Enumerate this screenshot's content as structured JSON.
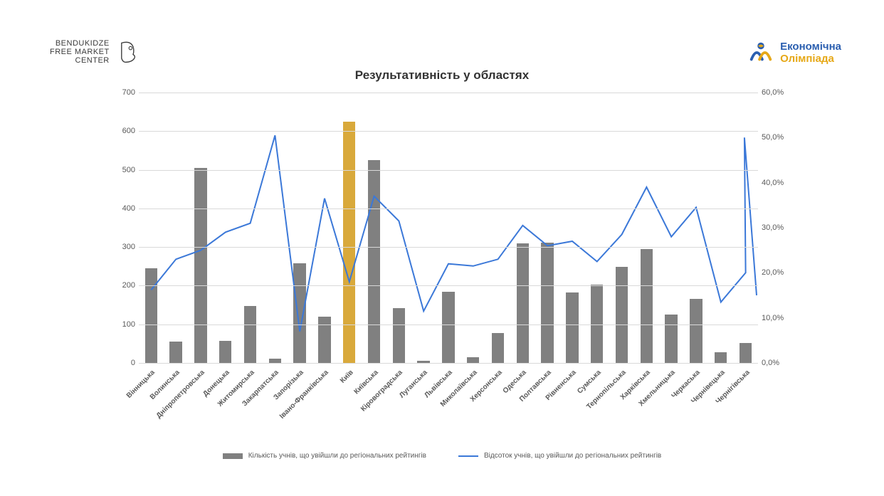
{
  "title": "Результативність у областях",
  "logos": {
    "left": {
      "line1": "BENDUKIDZE",
      "line2": "FREE MARKET",
      "line3": "CENTER"
    },
    "right": {
      "line1": "Економічна",
      "line2": "Олімпіада",
      "line1_color": "#2b5fb0",
      "line2_color": "#e6a817"
    }
  },
  "chart": {
    "type": "bar+line",
    "background_color": "#ffffff",
    "grid_color": "#d9d9d9",
    "bar_color": "#808080",
    "bar_highlight_color": "#d9a93b",
    "line_color": "#3b78d8",
    "line_width": 2,
    "y_left": {
      "min": 0,
      "max": 700,
      "step": 100
    },
    "y_right": {
      "min": 0,
      "max": 60,
      "step": 10,
      "suffix": ",0%"
    },
    "categories": [
      "Вінницька",
      "Волинська",
      "Дніпропетровська",
      "Донецька",
      "Житомирська",
      "Закарпатська",
      "Запорізька",
      "Івано-Франківська",
      "Київ",
      "Київська",
      "Кіровоградська",
      "Луганська",
      "Львівська",
      "Миколаївська",
      "Херсонська",
      "Одеська",
      "Полтавська",
      "Рівненська",
      "Сумська",
      "Тернопільська",
      "Харківська",
      "Хмельницька",
      "Черкаська",
      "Чернівецька",
      "Чернігівська"
    ],
    "bar_values": [
      245,
      55,
      505,
      58,
      148,
      12,
      258,
      120,
      625,
      525,
      142,
      5,
      185,
      14,
      78,
      310,
      312,
      182,
      202,
      248,
      295,
      125,
      165,
      28,
      52
    ],
    "highlight_index": 8,
    "line_values_pct": [
      16.2,
      23.0,
      25.0,
      29.0,
      31.0,
      50.5,
      7.0,
      36.5,
      18.0,
      37.0,
      31.5,
      11.5,
      22.0,
      21.5,
      23.0,
      30.5,
      26.0,
      27.0,
      22.5,
      28.5,
      39.0,
      28.0,
      34.5,
      13.5,
      20.0,
      50.0,
      15.0
    ],
    "line_values_used": [
      16.2,
      23.0,
      25.0,
      29.0,
      31.0,
      50.5,
      7.0,
      36.5,
      18.0,
      37.0,
      31.5,
      11.5,
      22.0,
      21.5,
      23.0,
      30.5,
      26.0,
      27.0,
      22.5,
      28.5,
      39.0,
      28.0,
      34.5,
      13.5,
      20.0
    ],
    "line_extra_points": [
      50.0,
      15.0
    ]
  },
  "legend": {
    "bar_label": "Кількість учнів, що увійшли до регіональних рейтингів",
    "line_label": "Відсоток учнів, що увійшли до регіональних рейтингів"
  }
}
